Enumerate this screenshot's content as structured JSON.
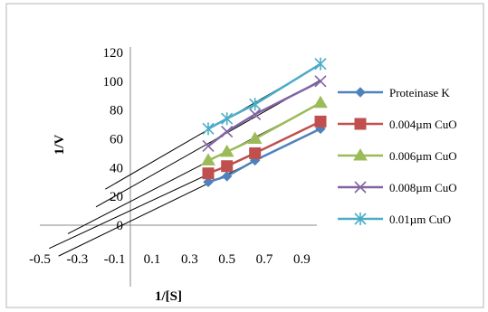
{
  "chart_data": {
    "type": "line",
    "title": "",
    "xlabel": "1/[S]",
    "ylabel": "1/V",
    "xlim": [
      -0.5,
      1.0
    ],
    "ylim": [
      0,
      120
    ],
    "x_ticks": [
      "-0.5",
      "-0.3",
      "-0.1",
      "0.1",
      "0.3",
      "0.5",
      "0.7",
      "0.9"
    ],
    "x_tick_values": [
      -0.5,
      -0.3,
      -0.1,
      0.1,
      0.3,
      0.5,
      0.7,
      0.9
    ],
    "y_ticks": [
      "0",
      "20",
      "40",
      "60",
      "80",
      "100",
      "120"
    ],
    "y_tick_values": [
      0,
      20,
      40,
      60,
      80,
      100,
      120
    ],
    "grid": false,
    "legend_position": "right",
    "x": [
      0.4,
      0.5,
      0.65,
      1.0
    ],
    "series": [
      {
        "name": "Proteinase K",
        "color": "#4f81bd",
        "marker": "diamond",
        "values": [
          30,
          34,
          45,
          67
        ],
        "trend_from": -0.4
      },
      {
        "name": "0.004µm CuO",
        "color": "#c0504d",
        "marker": "square",
        "values": [
          36,
          41,
          50,
          72
        ],
        "trend_from": -0.45
      },
      {
        "name": "0.006µm CuO",
        "color": "#9bbb59",
        "marker": "triangle",
        "values": [
          45,
          51,
          60,
          85
        ],
        "trend_from": -0.35
      },
      {
        "name": "0.008µm CuO",
        "color": "#8064a2",
        "marker": "x",
        "values": [
          55,
          65,
          77,
          100
        ],
        "trend_from": -0.2
      },
      {
        "name": "0.01µm CuO",
        "color": "#4bacc6",
        "marker": "star",
        "values": [
          67,
          74,
          84,
          112
        ],
        "trend_from": -0.15
      }
    ]
  }
}
